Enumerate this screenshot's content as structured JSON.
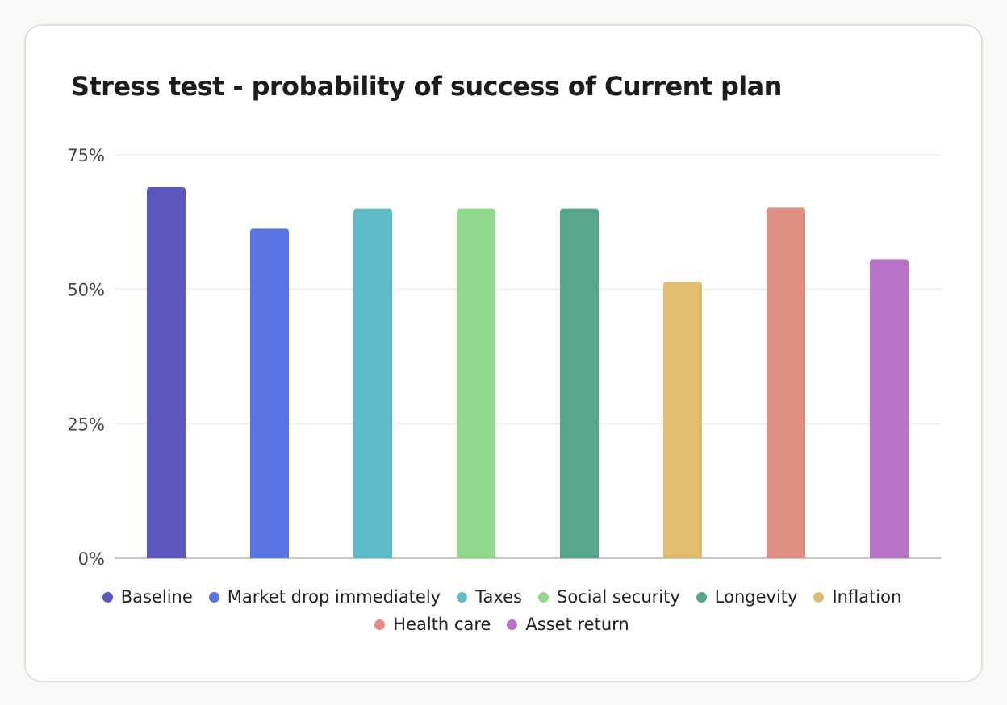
{
  "chart_data": {
    "type": "bar",
    "title": "Stress test - probability of success of Current plan",
    "categories": [
      "Baseline",
      "Market drop immediately",
      "Taxes",
      "Social security",
      "Longevity",
      "Inflation",
      "Health care",
      "Asset return"
    ],
    "values": [
      69,
      61.3,
      65,
      65,
      65,
      51.4,
      65.2,
      55.6
    ],
    "colors": [
      "#5b57bf",
      "#5874e2",
      "#5fbac8",
      "#92d98d",
      "#57a68c",
      "#e0bd6f",
      "#e08f84",
      "#b872c6"
    ],
    "ylim": [
      0,
      75
    ],
    "yticks": [
      0,
      25,
      50,
      75
    ],
    "ytick_labels": [
      "0%",
      "25%",
      "50%",
      "75%"
    ],
    "xlabel": "",
    "ylabel": "",
    "grid": true,
    "legend_position": "bottom"
  }
}
